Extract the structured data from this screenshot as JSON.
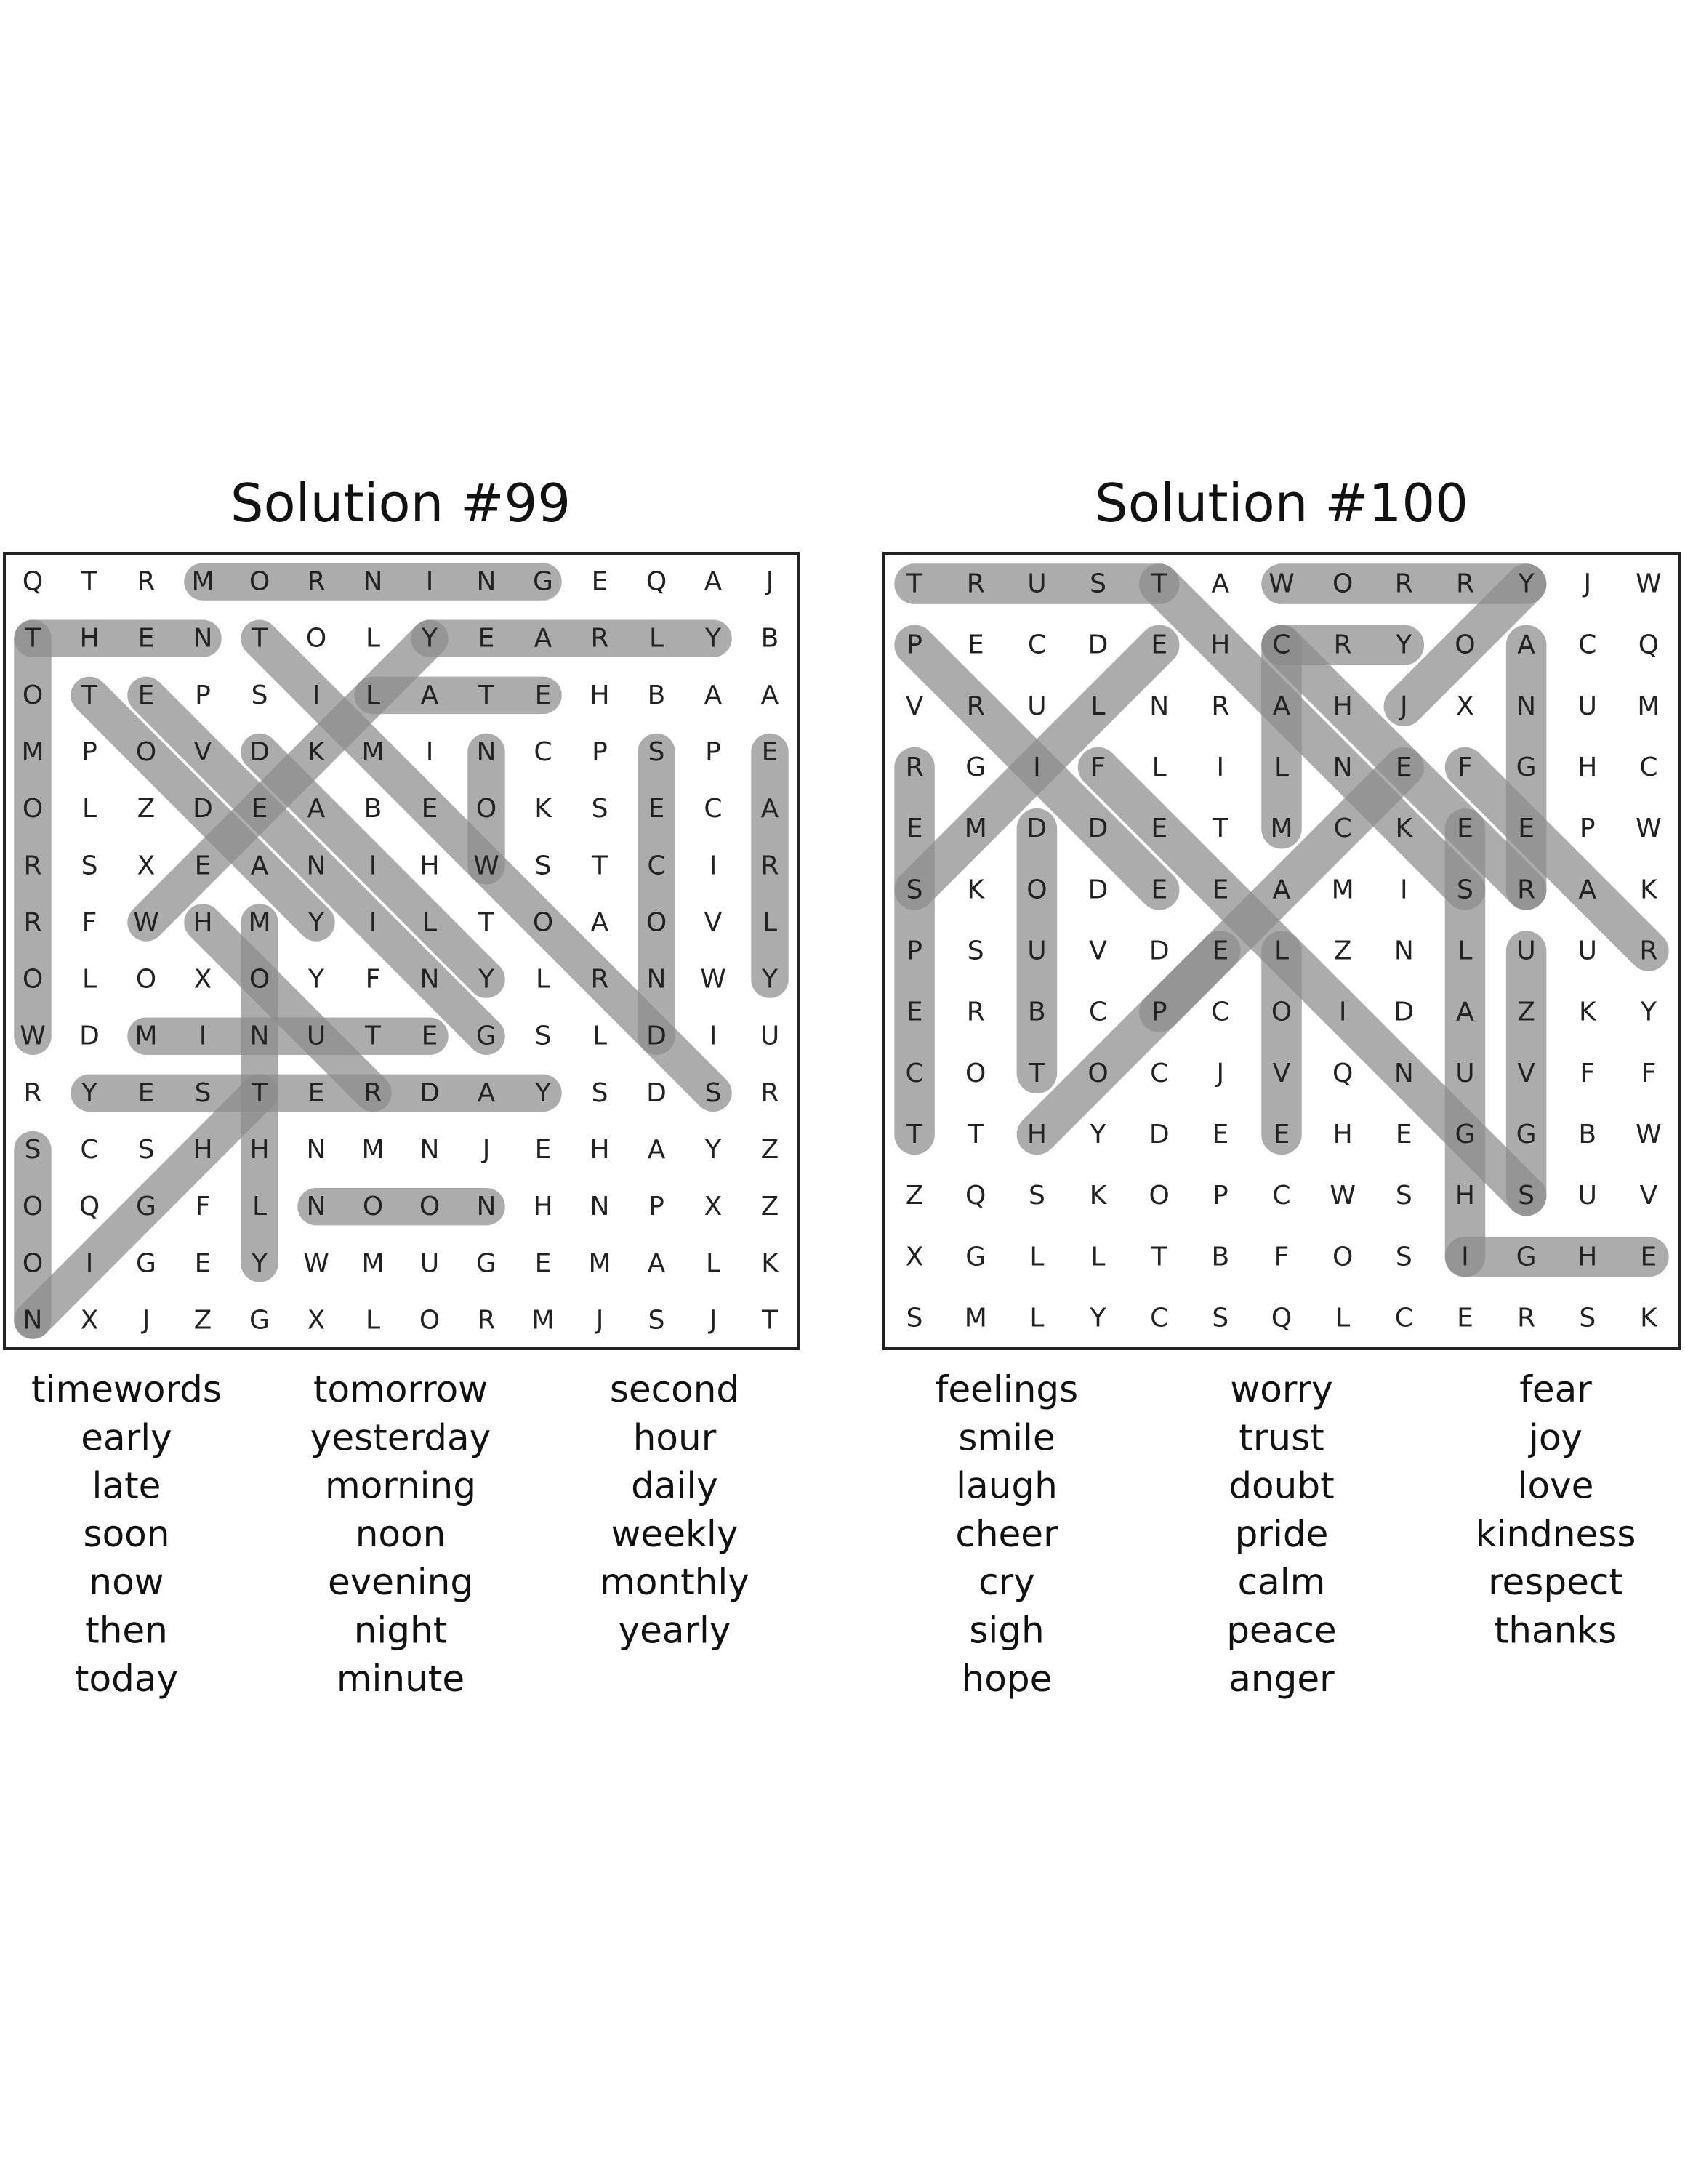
{
  "puzzles": [
    {
      "title": "Solution #99",
      "grid": [
        "QTRMORNINGEQAJ",
        "THENTOLYEARLYB",
        "OTEPSILATEHBAA",
        "MPOVDKMINCPSPE",
        "OLZDEABEOKSECA",
        "RSXEANIHWSTCIR",
        "RFWHMYILTOAOVL",
        "OLOXOYFNYLRNWY",
        "WDMINUTEGSLDIU",
        "RYESTERDAYSDSR",
        "SCSHHNMNJEHAYZ",
        "OQGFLNOONHNPXZ",
        "OIGEYWMUGEMALK",
        "NXJZGXLORMJSJT"
      ],
      "words": [
        [
          "timewords",
          "early",
          "late",
          "soon",
          "now",
          "then",
          "today"
        ],
        [
          "tomorrow",
          "yesterday",
          "morning",
          "noon",
          "evening",
          "night",
          "minute"
        ],
        [
          "second",
          "hour",
          "daily",
          "weekly",
          "monthly",
          "yearly"
        ]
      ]
    },
    {
      "title": "Solution #100",
      "grid": [
        "TRUSTAWORRYJW",
        "PECDEHCRYOACQ",
        "VRULNRAHJXNUM",
        "RGIFLILNEFGHC",
        "EMDDETMCKEEPW",
        "SKODEEAMISRAK",
        "PSUVDELZNLUUR",
        "ERBCPCOIDAZKY",
        "COTOCJVQNUVFF",
        "TTHYDEEHEGGBW",
        "ZQSKOPCWSHSUV",
        "XGLLTBFOSIGHE",
        "SMLYCSQLCERSK"
      ],
      "words": [
        [
          "feelings",
          "smile",
          "laugh",
          "cheer",
          "cry",
          "sigh",
          "hope"
        ],
        [
          "worry",
          "trust",
          "doubt",
          "pride",
          "calm",
          "peace",
          "anger"
        ],
        [
          "fear",
          "joy",
          "love",
          "kindness",
          "respect",
          "thanks"
        ]
      ]
    }
  ]
}
